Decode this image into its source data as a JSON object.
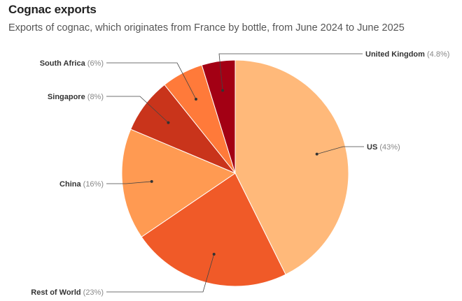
{
  "title": "Cognac exports",
  "subtitle": "Exports of cognac, which originates from France by bottle, from June 2024 to June 2025",
  "chart_data": {
    "type": "pie",
    "title": "Cognac exports",
    "subtitle": "Exports of cognac, which originates from France by bottle, from June 2024 to June 2025",
    "slices": [
      {
        "label": "US",
        "value_text": "(43%)",
        "value": 43,
        "color": "#ffb97a"
      },
      {
        "label": "Rest of World",
        "value_text": "(23%)",
        "value": 23,
        "color": "#f05a28"
      },
      {
        "label": "China",
        "value_text": "(16%)",
        "value": 16,
        "color": "#ff9a52"
      },
      {
        "label": "Singapore",
        "value_text": "(8%)",
        "value": 8,
        "color": "#c9341b"
      },
      {
        "label": "South Africa",
        "value_text": "(6%)",
        "value": 6,
        "color": "#ff7a3a"
      },
      {
        "label": "United Kingdom",
        "value_text": "(4.8%)",
        "value": 4.8,
        "color": "#a30014"
      }
    ],
    "start_angle": "12 o'clock",
    "direction": "clockwise",
    "legend": "none (leader-line labels)"
  }
}
